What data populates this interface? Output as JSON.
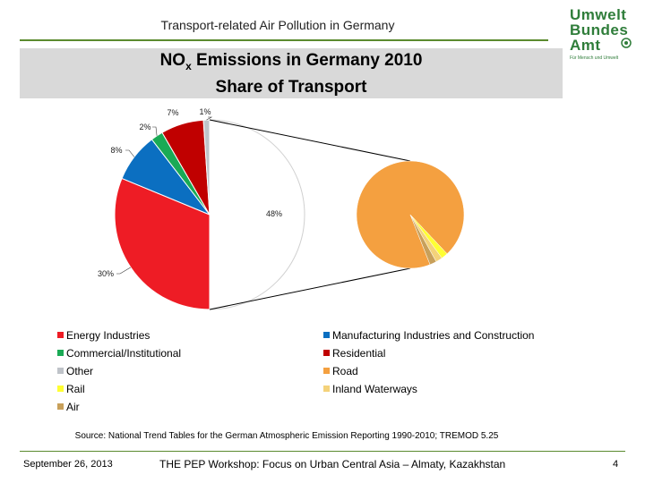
{
  "header": {
    "title": "Transport-related Air Pollution in Germany"
  },
  "logo": {
    "line1": "Umwelt",
    "line2": "Bundes",
    "line3": "Amt",
    "tagline": "Für Mensch und Umwelt",
    "color": "#2f7d3a"
  },
  "chart_data": {
    "type": "pie",
    "title_main": "NO",
    "title_sub": "x",
    "title_rest": " Emissions in Germany 2010",
    "title_line2": "Share of Transport",
    "main_pie": [
      {
        "name": "Transport",
        "value": 48,
        "label": "48%",
        "color": "#ffffff"
      },
      {
        "name": "Energy Industries",
        "value": 30,
        "label": "30%",
        "color": "#ee1c25"
      },
      {
        "name": "Manufacturing Industries and Construction",
        "value": 8,
        "label": "8%",
        "color": "#0b6fc1"
      },
      {
        "name": "Commercial/Institutional",
        "value": 2,
        "label": "2%",
        "color": "#1aaa55"
      },
      {
        "name": "Residential",
        "value": 7,
        "label": "7%",
        "color": "#c00000"
      },
      {
        "name": "Other",
        "value": 1,
        "label": "1%",
        "color": "#bfc3c9"
      }
    ],
    "transport_breakdown": [
      {
        "name": "Road",
        "value": 94,
        "color": "#f4a040"
      },
      {
        "name": "Rail",
        "value": 2,
        "color": "#ffff33"
      },
      {
        "name": "Inland Waterways",
        "value": 2,
        "color": "#f4d27a"
      },
      {
        "name": "Air",
        "value": 2,
        "color": "#c8a05a"
      }
    ]
  },
  "legend": [
    {
      "label": "Energy Industries",
      "color": "#ee1c25"
    },
    {
      "label": "Manufacturing Industries and Construction",
      "color": "#0b6fc1"
    },
    {
      "label": "Commercial/Institutional",
      "color": "#1aaa55"
    },
    {
      "label": "Residential",
      "color": "#c00000"
    },
    {
      "label": "Other",
      "color": "#bfc3c9"
    },
    {
      "label": "Road",
      "color": "#f4a040"
    },
    {
      "label": "Rail",
      "color": "#ffff33"
    },
    {
      "label": "Inland Waterways",
      "color": "#f4d27a"
    },
    {
      "label": "Air",
      "color": "#c8a05a"
    }
  ],
  "source": "Source: National Trend Tables for the German Atmospheric Emission Reporting 1990-2010; TREMOD 5.25",
  "footer": {
    "date": "September 26, 2013",
    "event": "THE PEP Workshop: Focus on Urban Central Asia – Almaty, Kazakhstan",
    "page": "4"
  }
}
